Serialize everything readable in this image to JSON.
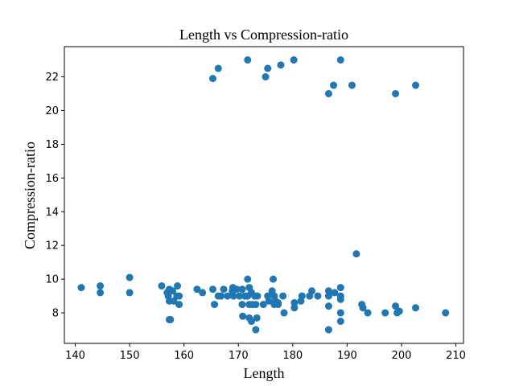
{
  "chart_data": {
    "type": "scatter",
    "title": "Length vs Compression-ratio",
    "xlabel": "Length",
    "ylabel": "Compression-ratio",
    "xlim": [
      138.0,
      211.4
    ],
    "ylim": [
      6.19,
      23.79
    ],
    "xticks": [
      140,
      150,
      160,
      170,
      180,
      190,
      200,
      210
    ],
    "yticks": [
      8,
      10,
      12,
      14,
      16,
      18,
      20,
      22
    ],
    "grid": false,
    "legend": "none",
    "marker_color": "#1f77b4",
    "points": [
      [
        141.1,
        9.5
      ],
      [
        144.6,
        9.6
      ],
      [
        144.6,
        9.2
      ],
      [
        150.0,
        10.1
      ],
      [
        150.0,
        9.2
      ],
      [
        155.9,
        9.6
      ],
      [
        156.9,
        9.2
      ],
      [
        157.1,
        9.0
      ],
      [
        157.3,
        9.4
      ],
      [
        157.3,
        8.7
      ],
      [
        157.3,
        7.6
      ],
      [
        157.5,
        7.6
      ],
      [
        157.9,
        9.3
      ],
      [
        158.1,
        8.7
      ],
      [
        158.7,
        9.0
      ],
      [
        158.8,
        9.6
      ],
      [
        159.1,
        9.0
      ],
      [
        159.1,
        8.5
      ],
      [
        162.4,
        9.4
      ],
      [
        163.4,
        9.2
      ],
      [
        165.3,
        21.9
      ],
      [
        165.3,
        9.4
      ],
      [
        165.6,
        8.5
      ],
      [
        166.3,
        22.5
      ],
      [
        166.3,
        9.0
      ],
      [
        166.8,
        9.0
      ],
      [
        167.3,
        9.4
      ],
      [
        168.0,
        9.0
      ],
      [
        168.9,
        9.3
      ],
      [
        169.0,
        9.5
      ],
      [
        169.1,
        9.0
      ],
      [
        169.7,
        9.4
      ],
      [
        170.2,
        9.0
      ],
      [
        170.7,
        9.4
      ],
      [
        170.7,
        8.5
      ],
      [
        170.8,
        7.8
      ],
      [
        171.2,
        9.0
      ],
      [
        171.7,
        23.0
      ],
      [
        171.7,
        10.0
      ],
      [
        171.7,
        9.0
      ],
      [
        172.0,
        9.5
      ],
      [
        172.0,
        8.5
      ],
      [
        172.0,
        7.7
      ],
      [
        172.4,
        9.2
      ],
      [
        172.4,
        7.5
      ],
      [
        172.6,
        8.5
      ],
      [
        173.0,
        9.0
      ],
      [
        173.2,
        8.5
      ],
      [
        173.2,
        7.0
      ],
      [
        173.4,
        7.7
      ],
      [
        173.5,
        9.0
      ],
      [
        174.6,
        8.5
      ],
      [
        175.0,
        22.0
      ],
      [
        175.4,
        22.5
      ],
      [
        175.4,
        9.0
      ],
      [
        175.6,
        8.7
      ],
      [
        176.2,
        9.3
      ],
      [
        176.4,
        10.0
      ],
      [
        176.6,
        9.0
      ],
      [
        176.6,
        8.5
      ],
      [
        176.8,
        8.7
      ],
      [
        177.3,
        8.5
      ],
      [
        177.3,
        8.6
      ],
      [
        177.8,
        22.7
      ],
      [
        178.2,
        9.0
      ],
      [
        178.4,
        8.0
      ],
      [
        180.2,
        23.0
      ],
      [
        180.3,
        8.6
      ],
      [
        180.3,
        8.3
      ],
      [
        181.5,
        8.7
      ],
      [
        181.7,
        9.0
      ],
      [
        183.1,
        9.0
      ],
      [
        183.5,
        9.3
      ],
      [
        184.6,
        9.0
      ],
      [
        186.6,
        21.0
      ],
      [
        186.6,
        9.3
      ],
      [
        186.6,
        9.0
      ],
      [
        186.6,
        8.4
      ],
      [
        186.6,
        7.0
      ],
      [
        187.5,
        21.5
      ],
      [
        187.7,
        9.2
      ],
      [
        188.8,
        23.0
      ],
      [
        188.8,
        9.5
      ],
      [
        188.8,
        9.0
      ],
      [
        188.8,
        8.8
      ],
      [
        188.8,
        8.0
      ],
      [
        188.8,
        7.5
      ],
      [
        190.9,
        21.5
      ],
      [
        191.7,
        11.5
      ],
      [
        192.7,
        8.5
      ],
      [
        192.9,
        8.3
      ],
      [
        193.8,
        8.0
      ],
      [
        197.0,
        8.0
      ],
      [
        198.9,
        21.0
      ],
      [
        198.9,
        8.4
      ],
      [
        199.2,
        8.0
      ],
      [
        199.6,
        8.1
      ],
      [
        202.6,
        21.5
      ],
      [
        202.6,
        8.3
      ],
      [
        208.1,
        8.0
      ]
    ]
  }
}
